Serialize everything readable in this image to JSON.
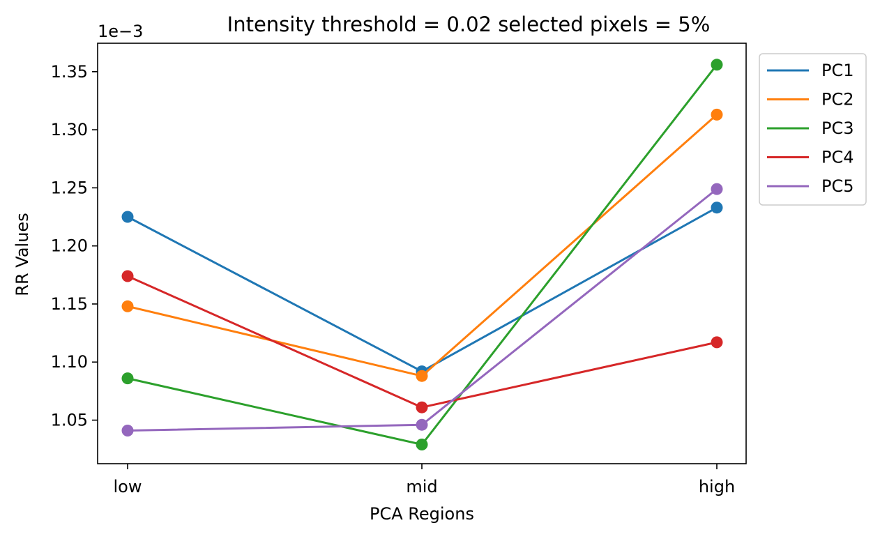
{
  "chart_data": {
    "type": "line",
    "title": "Intensity threshold = 0.02 selected pixels = 5%",
    "xlabel": "PCA Regions",
    "ylabel": "RR Values",
    "categories": [
      "low",
      "mid",
      "high"
    ],
    "y_offset_label": "1e−3",
    "y_tick_values": [
      1.05,
      1.1,
      1.15,
      1.2,
      1.25,
      1.3,
      1.35
    ],
    "y_tick_labels": [
      "1.05",
      "1.10",
      "1.15",
      "1.20",
      "1.25",
      "1.30",
      "1.35"
    ],
    "ylim": [
      1.0125,
      1.3745
    ],
    "grid": false,
    "legend_position": "outside-top-right",
    "markers": true,
    "series": [
      {
        "name": "PC1",
        "color": "#1f77b4",
        "values": [
          1.225,
          1.092,
          1.233
        ]
      },
      {
        "name": "PC2",
        "color": "#ff7f0e",
        "values": [
          1.148,
          1.088,
          1.313
        ]
      },
      {
        "name": "PC3",
        "color": "#2ca02c",
        "values": [
          1.086,
          1.029,
          1.356
        ]
      },
      {
        "name": "PC4",
        "color": "#d62728",
        "values": [
          1.174,
          1.061,
          1.117
        ]
      },
      {
        "name": "PC5",
        "color": "#9467bd",
        "values": [
          1.041,
          1.046,
          1.249
        ]
      }
    ]
  }
}
